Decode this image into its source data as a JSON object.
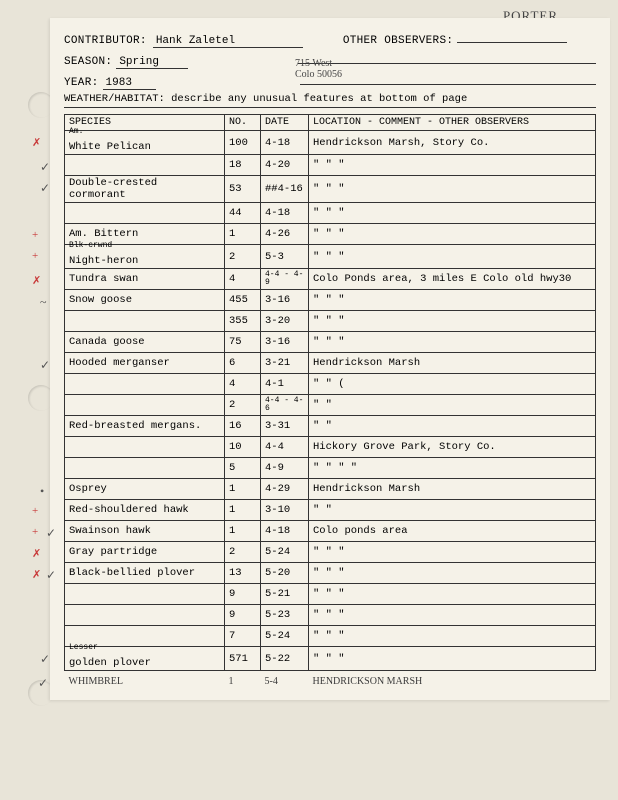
{
  "header": {
    "contributor_label": "CONTRIBUTOR:",
    "contributor": "Hank Zaletel",
    "other_label": "OTHER OBSERVERS:",
    "other_hand": "PORTER",
    "season_label": "SEASON:",
    "season": "Spring",
    "year_label": "YEAR:",
    "year": "1983",
    "address_l1": "715 West",
    "address_l2": "Colo 50056",
    "weather": "WEATHER/HABITAT: describe any unusual features at bottom of page"
  },
  "cols": {
    "species": "SPECIES",
    "no": "NO.",
    "date": "DATE",
    "loc": "LOCATION - COMMENT - OTHER OBSERVERS"
  },
  "rows": [
    {
      "mark": "✗",
      "check": "",
      "sup": "Am.",
      "species": "White Pelican",
      "no": "100",
      "date": "4-18",
      "loc": "Hendrickson Marsh, Story Co."
    },
    {
      "mark": "",
      "check": "✓",
      "species": "",
      "no": "18",
      "date": "4-20",
      "loc": "\"        \"        \""
    },
    {
      "mark": "",
      "check": "✓",
      "species": "Double-crested cormorant",
      "no": "53",
      "date": "##4-16",
      "loc": "\"        \"        \""
    },
    {
      "mark": "",
      "check": "",
      "species": "",
      "no": "44",
      "date": "4-18",
      "loc": "\"        \"        \""
    },
    {
      "mark": "+",
      "check": "",
      "species": "Am. Bittern",
      "no": "1",
      "date": "4-26",
      "loc": "\"        \"        \""
    },
    {
      "mark": "+",
      "check": "",
      "sup": "Blk-crwnd",
      "species": "Night-heron",
      "no": "2",
      "date": "5-3",
      "loc": "\"        \"        \""
    },
    {
      "mark": "✗",
      "check": "",
      "species": "Tundra swan",
      "no": "4",
      "date": "4-4 - 4-9",
      "loc": "Colo Ponds area, 3 miles E Colo old hwy30",
      "small": true
    },
    {
      "mark": "",
      "check": "~",
      "species": "Snow goose",
      "no": "455",
      "date": "3-16",
      "loc": "\"     \"     \""
    },
    {
      "mark": "",
      "check": "",
      "species": "",
      "no": "355",
      "date": "3-20",
      "loc": "\"     \"     \""
    },
    {
      "mark": "",
      "check": "",
      "species": "Canada goose",
      "no": "75",
      "date": "3-16",
      "loc": "\"     \"     \""
    },
    {
      "mark": "",
      "check": "✓",
      "species": "Hooded merganser",
      "no": "6",
      "date": "3-21",
      "loc": "Hendrickson Marsh"
    },
    {
      "mark": "",
      "check": "",
      "species": "",
      "no": "4",
      "date": "4-1",
      "loc": "\"         \"      ("
    },
    {
      "mark": "",
      "check": "",
      "species": "",
      "no": "2",
      "date": "4-4 - 4-6",
      "loc": "\"         \"",
      "small": true
    },
    {
      "mark": "",
      "check": "",
      "species": "Red-breasted mergans.",
      "no": "16",
      "date": "3-31",
      "loc": "\"         \""
    },
    {
      "mark": "",
      "check": "",
      "species": "",
      "no": "10",
      "date": "4-4",
      "loc": "Hickory Grove Park, Story Co."
    },
    {
      "mark": "",
      "check": "",
      "species": "",
      "no": "5",
      "date": "4-9",
      "loc": "\"     \"     \"     \""
    },
    {
      "mark": "",
      "check": "•",
      "species": "Osprey",
      "no": "1",
      "date": "4-29",
      "loc": "Hendrickson Marsh"
    },
    {
      "mark": "+",
      "check": "",
      "species": "Red-shouldered hawk",
      "no": "1",
      "date": "3-10",
      "loc": "\"         \""
    },
    {
      "mark": "+",
      "check": "✓",
      "species": "Swainson hawk",
      "no": "1",
      "date": "4-18",
      "loc": "Colo ponds area"
    },
    {
      "mark": "✗",
      "check": "",
      "species": "Gray partridge",
      "no": "2",
      "date": "5-24",
      "loc": "\"    \"    \""
    },
    {
      "mark": "✗",
      "check": "✓",
      "species": "Black-bellied plover",
      "no": "13",
      "date": "5-20",
      "loc": "\"    \"    \""
    },
    {
      "mark": "",
      "check": "",
      "species": "",
      "no": "9",
      "date": "5-21",
      "loc": "\"    \"    \""
    },
    {
      "mark": "",
      "check": "",
      "species": "",
      "no": "9",
      "date": "5-23",
      "loc": "\"    \"    \""
    },
    {
      "mark": "",
      "check": "",
      "species": "",
      "no": "7",
      "date": "5-24",
      "loc": "\"    \"    \""
    },
    {
      "mark": "",
      "check": "✓",
      "sup": "Lesser",
      "species": "golden plover",
      "no": "571",
      "date": "5-22",
      "loc": "\"    \"    \""
    }
  ],
  "hand_row": {
    "mark": "✓",
    "species": "WHIMBREL",
    "no": "1",
    "date": "5-4",
    "loc": "HENDRICKSON MARSH"
  }
}
